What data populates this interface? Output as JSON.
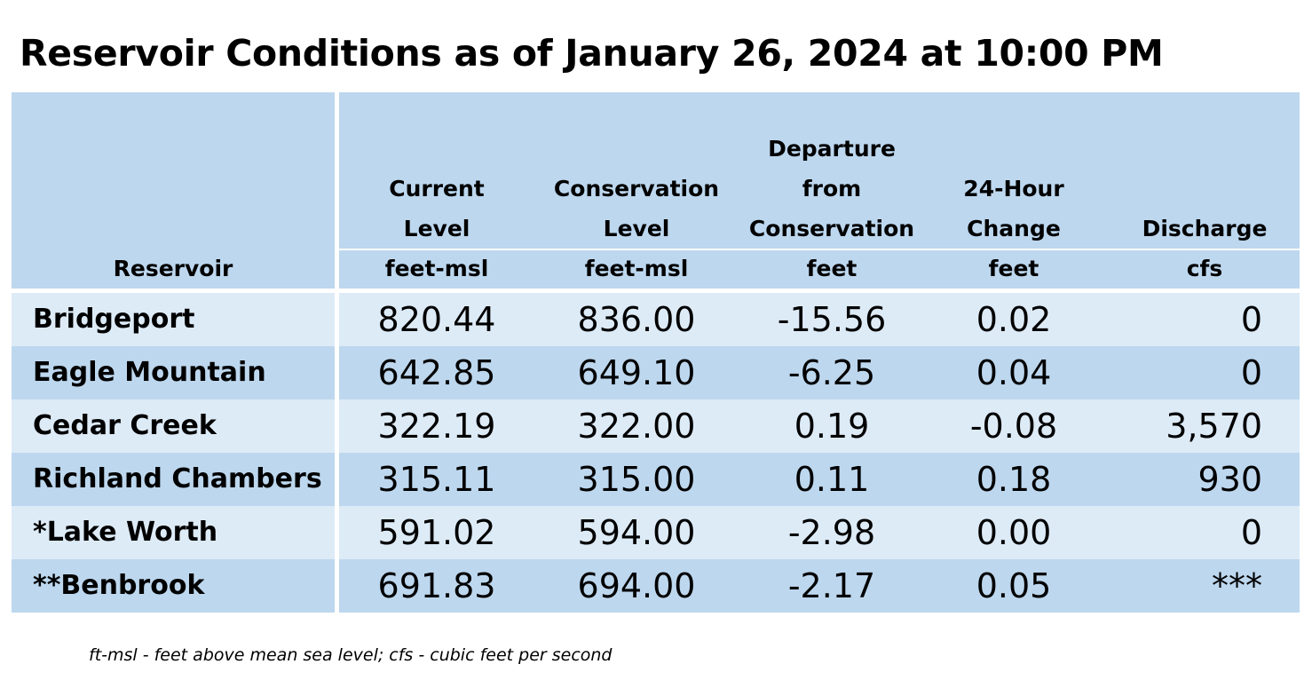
{
  "title": "Reservoir Conditions as of January 26, 2024 at 10:00 PM",
  "columns": [
    {
      "label_lines": [],
      "label": "Reservoir",
      "unit": ""
    },
    {
      "label_lines": [
        "Current",
        "Level"
      ],
      "unit": "feet-msl"
    },
    {
      "label_lines": [
        "Conservation",
        "Level"
      ],
      "unit": "feet-msl"
    },
    {
      "label_lines": [
        "Departure",
        "from",
        "Conservation"
      ],
      "unit": "feet"
    },
    {
      "label_lines": [
        "24-Hour",
        "Change"
      ],
      "unit": "feet"
    },
    {
      "label_lines": [
        "Discharge"
      ],
      "unit": "cfs"
    }
  ],
  "rows": [
    {
      "name": "Bridgeport",
      "current": "820.44",
      "conservation": "836.00",
      "departure": "-15.56",
      "change": "0.02",
      "discharge": "0"
    },
    {
      "name": "Eagle Mountain",
      "current": "642.85",
      "conservation": "649.10",
      "departure": "-6.25",
      "change": "0.04",
      "discharge": "0"
    },
    {
      "name": "Cedar Creek",
      "current": "322.19",
      "conservation": "322.00",
      "departure": "0.19",
      "change": "-0.08",
      "discharge": "3,570"
    },
    {
      "name": "Richland Chambers",
      "current": "315.11",
      "conservation": "315.00",
      "departure": "0.11",
      "change": "0.18",
      "discharge": "930"
    },
    {
      "name": "*Lake Worth",
      "current": "591.02",
      "conservation": "594.00",
      "departure": "-2.98",
      "change": "0.00",
      "discharge": "0"
    },
    {
      "name": "**Benbrook",
      "current": "691.83",
      "conservation": "694.00",
      "departure": "-2.17",
      "change": "0.05",
      "discharge": "***"
    }
  ],
  "footnote": "ft-msl - feet above mean sea level; cfs - cubic feet per second",
  "colors": {
    "header_bg": "#bdd7ee",
    "row_light": "#ddebf7",
    "row_dark": "#bdd7ee"
  }
}
